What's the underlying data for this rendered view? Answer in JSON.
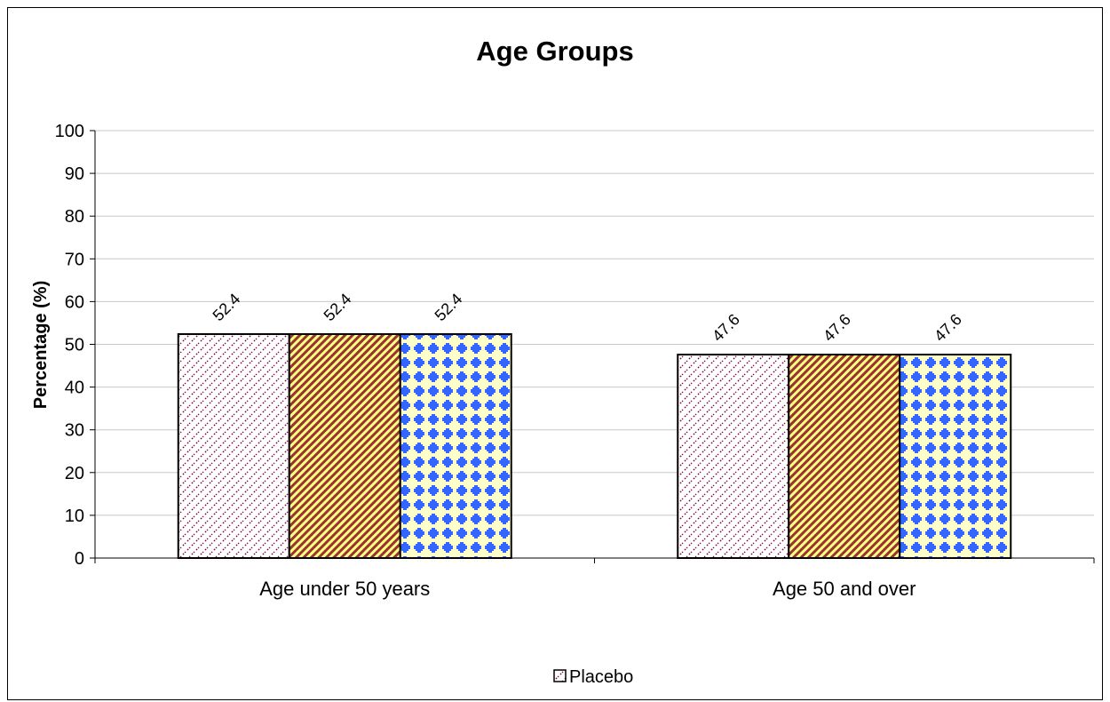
{
  "chart_data": {
    "type": "bar",
    "title": "Age Groups",
    "ylabel": "Percentage (%)",
    "xlabel": "",
    "ylim": [
      0,
      100
    ],
    "yticks": [
      0,
      10,
      20,
      30,
      40,
      50,
      60,
      70,
      80,
      90,
      100
    ],
    "grid": true,
    "categories": [
      "Age under 50 years",
      "Age 50 and over"
    ],
    "series": [
      {
        "name": "Placebo",
        "values": [
          52.4,
          47.6
        ],
        "pattern": "dots",
        "colors": [
          "#ffffff",
          "#800040"
        ]
      },
      {
        "values": [
          52.4,
          47.6
        ],
        "pattern": "diagonal",
        "colors": [
          "#ffff80",
          "#993333"
        ]
      },
      {
        "values": [
          52.4,
          47.6
        ],
        "pattern": "dotgrid",
        "colors": [
          "#ffffcc",
          "#3366ff"
        ]
      }
    ],
    "data_labels": [
      [
        "52.4",
        "47.6"
      ],
      [
        "52.4",
        "47.6"
      ],
      [
        "52.4",
        "47.6"
      ]
    ],
    "legend": {
      "placement": "bottom",
      "entries": [
        "Placebo"
      ]
    }
  }
}
